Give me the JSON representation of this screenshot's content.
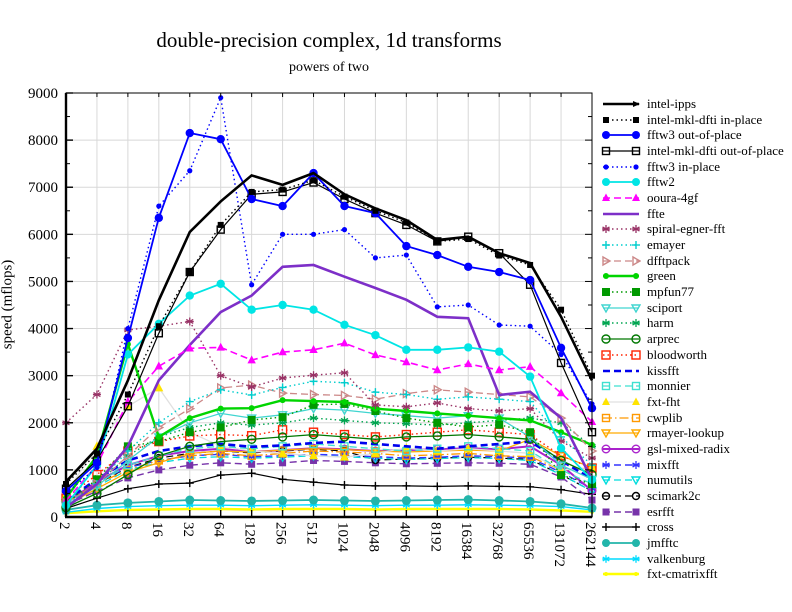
{
  "chart_data": {
    "type": "line",
    "title": "double-precision complex, 1d transforms",
    "subtitle": "powers of two",
    "ylabel": "speed (mflops)",
    "xlabel": "",
    "x_labels": [
      "2",
      "4",
      "8",
      "16",
      "32",
      "64",
      "128",
      "256",
      "512",
      "1024",
      "2048",
      "4096",
      "8192",
      "16384",
      "32768",
      "65536",
      "131072",
      "262144"
    ],
    "ylim": [
      0,
      9000
    ],
    "y_ticks": [
      0,
      1000,
      2000,
      3000,
      4000,
      5000,
      6000,
      7000,
      8000,
      9000
    ],
    "grid": true,
    "legend_position": "right-outside",
    "grid_color": "#d8d8d8",
    "axis_color": "#000000",
    "series": [
      {
        "name": "intel-ipps",
        "color": "#000000",
        "line": "solid",
        "width": 2.6,
        "marker": "arrow",
        "values": [
          750,
          1450,
          2900,
          4600,
          6050,
          6700,
          7250,
          7050,
          7300,
          6850,
          6550,
          6300,
          5880,
          5950,
          5600,
          5390,
          4250,
          2900
        ]
      },
      {
        "name": "intel-mkl-dfti in-place",
        "color": "#000000",
        "line": "dotted",
        "width": 1.4,
        "marker": "square",
        "msize": 3,
        "values": [
          700,
          1350,
          2600,
          4050,
          5200,
          6200,
          6900,
          6950,
          7150,
          6800,
          6500,
          6250,
          5850,
          5900,
          5550,
          5350,
          4400,
          3000
        ]
      },
      {
        "name": "fftw3 out-of-place",
        "color": "#0000ff",
        "line": "solid",
        "width": 1.8,
        "marker": "circle",
        "msize": 4.2,
        "values": [
          550,
          1150,
          3800,
          6350,
          8150,
          8020,
          6750,
          6600,
          7300,
          6600,
          6450,
          5750,
          5560,
          5310,
          5200,
          5030,
          3590,
          2310
        ]
      },
      {
        "name": "intel-mkl-dfti out-of-place",
        "color": "#000000",
        "line": "solid",
        "width": 1.2,
        "marker": "square-open",
        "msize": 3.5,
        "values": [
          600,
          1200,
          2350,
          3900,
          5200,
          6100,
          6850,
          6900,
          7100,
          6750,
          6450,
          6200,
          5850,
          5950,
          5600,
          4930,
          3270,
          1800
        ]
      },
      {
        "name": "fftw3 in-place",
        "color": "#0000ff",
        "line": "dotted",
        "width": 1.4,
        "marker": "dot",
        "msize": 2.6,
        "values": [
          500,
          1050,
          4000,
          6600,
          7350,
          8900,
          4930,
          6000,
          6000,
          6100,
          5500,
          5560,
          4460,
          4500,
          4075,
          4050,
          3450,
          2400
        ]
      },
      {
        "name": "fftw2",
        "color": "#00e5e5",
        "line": "solid",
        "width": 1.8,
        "marker": "circle",
        "msize": 4.2,
        "values": [
          250,
          1100,
          3450,
          4100,
          4700,
          4950,
          4400,
          4500,
          4400,
          4080,
          3860,
          3550,
          3550,
          3600,
          3510,
          2980,
          1460,
          790
        ]
      },
      {
        "name": "ooura-4gf",
        "color": "#ff00ff",
        "line": "dashed",
        "width": 1.6,
        "marker": "triangle-up",
        "msize": 4.2,
        "values": [
          350,
          1100,
          2450,
          3200,
          3580,
          3600,
          3330,
          3500,
          3550,
          3690,
          3440,
          3290,
          3120,
          3250,
          3120,
          3190,
          2630,
          2020
        ]
      },
      {
        "name": "ffte",
        "color": "#7d2fc8",
        "line": "solid",
        "width": 2.6,
        "marker": "none",
        "values": [
          200,
          700,
          1500,
          2900,
          3650,
          4350,
          4700,
          5310,
          5350,
          5100,
          4860,
          4610,
          4250,
          4220,
          2590,
          2660,
          2100,
          790
        ]
      },
      {
        "name": "spiral-egner-fft",
        "color": "#993366",
        "line": "dotted",
        "width": 1.4,
        "marker": "asterisk",
        "msize": 4,
        "values": [
          2000,
          2600,
          3970,
          4050,
          4150,
          3000,
          2760,
          2950,
          3010,
          3060,
          2380,
          2340,
          2420,
          2300,
          2250,
          2300,
          1610,
          1250
        ]
      },
      {
        "name": "emayer",
        "color": "#00cdcd",
        "line": "dotted",
        "width": 1.4,
        "marker": "plus",
        "msize": 4,
        "values": [
          250,
          700,
          1400,
          2000,
          2450,
          2700,
          2590,
          2750,
          2880,
          2850,
          2650,
          2600,
          2500,
          2550,
          2500,
          2450,
          1700,
          1100
        ]
      },
      {
        "name": "dfftpack",
        "color": "#cc8888",
        "line": "dashed",
        "width": 1.3,
        "marker": "triangle-right-open",
        "msize": 4,
        "values": [
          300,
          700,
          1300,
          1900,
          2300,
          2740,
          2800,
          2630,
          2600,
          2580,
          2500,
          2620,
          2700,
          2650,
          2600,
          2550,
          2100,
          1400
        ]
      },
      {
        "name": "green",
        "color": "#00d500",
        "line": "solid",
        "width": 2.4,
        "marker": "circle",
        "msize": 3,
        "values": [
          400,
          1300,
          3670,
          1700,
          2100,
          2300,
          2310,
          2480,
          2460,
          2440,
          2300,
          2250,
          2200,
          2150,
          2100,
          2050,
          1800,
          1530
        ]
      },
      {
        "name": "mpfun77",
        "color": "#009900",
        "line": "dotted",
        "width": 1.4,
        "marker": "square",
        "msize": 4,
        "values": [
          300,
          800,
          1500,
          1600,
          1800,
          1900,
          2060,
          2120,
          2380,
          2400,
          2250,
          2100,
          2000,
          1910,
          1960,
          1800,
          890,
          700
        ]
      },
      {
        "name": "sciport",
        "color": "#40d5d0",
        "line": "solid",
        "width": 1.3,
        "marker": "triangle-down-open",
        "msize": 4,
        "values": [
          250,
          650,
          1200,
          1700,
          2000,
          2200,
          2100,
          2170,
          2300,
          2270,
          2200,
          2150,
          2100,
          2150,
          2100,
          1700,
          1100,
          800
        ]
      },
      {
        "name": "harm",
        "color": "#00a550",
        "line": "dotted",
        "width": 1.4,
        "marker": "asterisk",
        "msize": 4,
        "values": [
          300,
          700,
          1300,
          1700,
          1900,
          2000,
          1950,
          2000,
          2100,
          2050,
          2000,
          1980,
          1950,
          2000,
          2050,
          2100,
          2000,
          1500
        ]
      },
      {
        "name": "arprec",
        "color": "#007700",
        "line": "solid",
        "width": 1.3,
        "marker": "circle-open",
        "msize": 4,
        "values": [
          200,
          500,
          900,
          1300,
          1500,
          1600,
          1650,
          1700,
          1750,
          1700,
          1650,
          1700,
          1720,
          1750,
          1700,
          1650,
          1200,
          900
        ]
      },
      {
        "name": "bloodworth",
        "color": "#ff2200",
        "line": "dotted",
        "width": 1.4,
        "marker": "square-open",
        "msize": 4,
        "values": [
          400,
          900,
          1400,
          1600,
          1720,
          1750,
          1725,
          1850,
          1800,
          1750,
          1700,
          1750,
          1800,
          1850,
          1800,
          1750,
          1300,
          1040
        ]
      },
      {
        "name": "kissfft",
        "color": "#0000ee",
        "line": "dashed",
        "width": 2.6,
        "marker": "none",
        "values": [
          350,
          800,
          1200,
          1400,
          1500,
          1550,
          1490,
          1520,
          1570,
          1600,
          1550,
          1500,
          1450,
          1500,
          1550,
          1600,
          1200,
          800
        ]
      },
      {
        "name": "monnier",
        "color": "#3fe0d0",
        "line": "dashed",
        "width": 1.3,
        "marker": "square-open",
        "msize": 3.5,
        "values": [
          300,
          700,
          1100,
          1300,
          1450,
          1500,
          1450,
          1500,
          1550,
          1500,
          1450,
          1400,
          1450,
          1500,
          1450,
          1400,
          1000,
          700
        ]
      },
      {
        "name": "fxt-fht",
        "color": "#e0e0e0",
        "marker_color": "#ffe400",
        "line": "solid",
        "width": 1.3,
        "marker": "triangle-up",
        "msize": 4.5,
        "values": [
          500,
          1500,
          2350,
          2740,
          1800,
          1500,
          1400,
          1350,
          1300,
          1270,
          1350,
          1460,
          1400,
          1450,
          1400,
          1350,
          1000,
          1050
        ]
      },
      {
        "name": "cwplib",
        "color": "#ff9900",
        "line": "dashdot",
        "width": 1.3,
        "marker": "square-open",
        "msize": 3.5,
        "values": [
          300,
          700,
          1000,
          1200,
          1300,
          1350,
          1300,
          1350,
          1400,
          1380,
          1350,
          1300,
          1320,
          1350,
          1300,
          1280,
          1000,
          1040
        ]
      },
      {
        "name": "rmayer-lookup",
        "color": "#ffaa00",
        "line": "solid",
        "width": 1.3,
        "marker": "triangle-down-open",
        "msize": 4,
        "values": [
          250,
          600,
          950,
          1150,
          1350,
          1400,
          1380,
          1420,
          1450,
          1430,
          1400,
          1380,
          1400,
          1420,
          1400,
          1650,
          1300,
          1050
        ]
      },
      {
        "name": "gsl-mixed-radix",
        "color": "#aa22cc",
        "line": "solid",
        "width": 2,
        "marker": "circle-open",
        "msize": 3.8,
        "values": [
          300,
          750,
          1100,
          1300,
          1400,
          1450,
          1380,
          1420,
          1460,
          1440,
          1400,
          1420,
          1440,
          1460,
          1440,
          1500,
          1100,
          560
        ]
      },
      {
        "name": "mixfft",
        "color": "#3333ff",
        "line": "dashed",
        "width": 1.4,
        "marker": "asterisk",
        "msize": 4,
        "values": [
          350,
          750,
          1050,
          1200,
          1300,
          1330,
          1280,
          1300,
          1330,
          1310,
          1280,
          1250,
          1270,
          1300,
          1280,
          1250,
          950,
          600
        ]
      },
      {
        "name": "numutils",
        "color": "#00dddd",
        "line": "dashed",
        "width": 1.3,
        "marker": "triangle-down-open",
        "msize": 4,
        "values": [
          300,
          650,
          1000,
          1150,
          1250,
          1280,
          1250,
          1270,
          1300,
          1280,
          1250,
          1220,
          1240,
          1260,
          1240,
          1200,
          900,
          550
        ]
      },
      {
        "name": "scimark2c",
        "color": "#000000",
        "line": "dashed",
        "width": 1.2,
        "marker": "circle-open",
        "msize": 3.5,
        "values": [
          350,
          700,
          1050,
          1250,
          1350,
          1400,
          1360,
          1400,
          1440,
          1400,
          1210,
          1230,
          1250,
          1270,
          1250,
          1220,
          900,
          550
        ]
      },
      {
        "name": "esrfft",
        "color": "#7733aa",
        "line": "dashed",
        "width": 1.4,
        "marker": "square",
        "msize": 3.5,
        "values": [
          250,
          550,
          830,
          1000,
          1100,
          1150,
          1120,
          1150,
          1200,
          1180,
          1150,
          1130,
          1140,
          1150,
          1140,
          1120,
          850,
          360
        ]
      },
      {
        "name": "cross",
        "color": "#000000",
        "line": "solid",
        "width": 1.2,
        "marker": "plus",
        "msize": 4,
        "values": [
          180,
          400,
          600,
          700,
          720,
          890,
          930,
          800,
          740,
          680,
          660,
          660,
          650,
          660,
          650,
          640,
          580,
          480
        ]
      },
      {
        "name": "jmfftc",
        "color": "#22b5aa",
        "line": "solid",
        "width": 1.8,
        "marker": "circle",
        "msize": 4.5,
        "values": [
          150,
          250,
          300,
          330,
          360,
          350,
          340,
          350,
          360,
          350,
          340,
          350,
          360,
          370,
          350,
          330,
          280,
          190
        ]
      },
      {
        "name": "valkenburg",
        "color": "#00dcff",
        "line": "solid",
        "width": 1.4,
        "marker": "asterisk",
        "msize": 3.8,
        "values": [
          100,
          180,
          220,
          240,
          250,
          250,
          240,
          250,
          260,
          250,
          240,
          250,
          250,
          260,
          250,
          240,
          220,
          150
        ]
      },
      {
        "name": "fxt-cmatrixfft",
        "color": "#ffff00",
        "line": "solid",
        "width": 2.4,
        "marker": "dot",
        "msize": 2,
        "values": [
          80,
          120,
          150,
          160,
          170,
          170,
          160,
          170,
          170,
          170,
          160,
          170,
          170,
          170,
          170,
          160,
          140,
          110
        ]
      }
    ]
  }
}
